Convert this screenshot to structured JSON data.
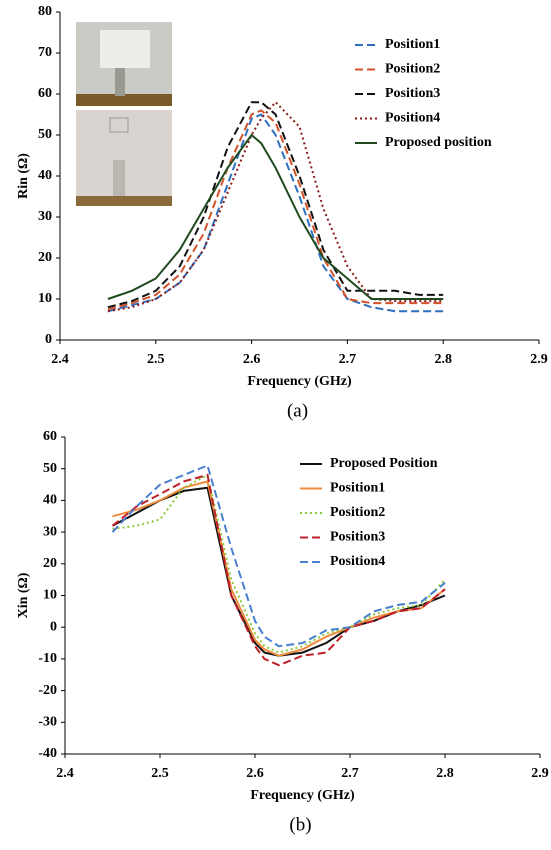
{
  "chart_data": [
    {
      "type": "line",
      "xlabel": "Frequency (GHz)",
      "ylabel": "Rin (Ω)",
      "caption": "(a)",
      "x": [
        2.45,
        2.475,
        2.5,
        2.525,
        2.55,
        2.575,
        2.6,
        2.61,
        2.625,
        2.65,
        2.675,
        2.7,
        2.725,
        2.75,
        2.775,
        2.8
      ],
      "xlim": [
        2.4,
        2.9
      ],
      "xticks": [
        2.4,
        2.5,
        2.6,
        2.7,
        2.8,
        2.9
      ],
      "ylim": [
        0,
        80
      ],
      "yticks": [
        0,
        10,
        20,
        30,
        40,
        50,
        60,
        70,
        80
      ],
      "legend": "upper right",
      "grid": false,
      "series": [
        {
          "name": "Position1",
          "color": "#2e6fc0",
          "style": "dashed",
          "values": [
            7,
            8.5,
            10,
            14,
            22,
            38,
            54,
            55,
            50,
            35,
            18,
            10,
            8,
            7,
            7,
            7
          ]
        },
        {
          "name": "Position2",
          "color": "#d2522a",
          "style": "dashed",
          "values": [
            7.5,
            9,
            11,
            16,
            26,
            42,
            55,
            56,
            53,
            38,
            20,
            10,
            9,
            9,
            9,
            9
          ]
        },
        {
          "name": "Position3",
          "color": "#111111",
          "style": "dashed",
          "values": [
            8,
            9.5,
            12,
            18,
            30,
            47,
            58,
            58,
            55,
            40,
            22,
            12,
            12,
            12,
            11,
            11
          ]
        },
        {
          "name": "Position4",
          "color": "#8b1a1a",
          "style": "dotted",
          "values": [
            7,
            8,
            10,
            14,
            22,
            36,
            50,
            54,
            58,
            52,
            32,
            18,
            10,
            9.5,
            9.5,
            9.5
          ]
        },
        {
          "name": "Proposed position",
          "color": "#1f4a1f",
          "style": "solid",
          "values": [
            10,
            12,
            15,
            22,
            32,
            42,
            50,
            48,
            42,
            30,
            20,
            15,
            10,
            10,
            10,
            10
          ]
        }
      ]
    },
    {
      "type": "line",
      "xlabel": "Frequency (GHz)",
      "ylabel": "Xin (Ω)",
      "caption": "(b)",
      "x": [
        2.45,
        2.475,
        2.5,
        2.525,
        2.55,
        2.575,
        2.6,
        2.61,
        2.625,
        2.65,
        2.675,
        2.7,
        2.725,
        2.75,
        2.775,
        2.8
      ],
      "xlim": [
        2.4,
        2.9
      ],
      "xticks": [
        2.4,
        2.5,
        2.6,
        2.7,
        2.8,
        2.9
      ],
      "ylim": [
        -40,
        60
      ],
      "yticks": [
        -40,
        -30,
        -20,
        -10,
        0,
        10,
        20,
        30,
        40,
        50,
        60
      ],
      "legend": "upper right",
      "grid": false,
      "series": [
        {
          "name": "Proposed Position",
          "color": "#111111",
          "style": "solid",
          "values": [
            32,
            36,
            40,
            43,
            44,
            10,
            -5,
            -8,
            -9,
            -8,
            -5,
            0,
            2,
            5,
            7,
            10
          ]
        },
        {
          "name": "Position1",
          "color": "#f08a3c",
          "style": "solid",
          "values": [
            35,
            37,
            40,
            44,
            46,
            12,
            -4,
            -7,
            -9,
            -7,
            -3,
            0,
            3,
            5,
            6,
            12
          ]
        },
        {
          "name": "Position2",
          "color": "#8cc83c",
          "style": "dotted",
          "values": [
            31,
            32,
            34,
            44,
            48,
            15,
            -2,
            -6,
            -8,
            -6,
            -2,
            0,
            4,
            6,
            7,
            15
          ]
        },
        {
          "name": "Position3",
          "color": "#c0202a",
          "style": "dashed",
          "values": [
            32,
            38,
            42,
            46,
            48,
            10,
            -6,
            -10,
            -12,
            -9,
            -8,
            0,
            2,
            5,
            6,
            12
          ]
        },
        {
          "name": "Position4",
          "color": "#4a7fd0",
          "style": "dashed",
          "values": [
            30,
            38,
            45,
            48,
            51,
            25,
            2,
            -3,
            -6,
            -5,
            -1,
            0,
            5,
            7,
            8,
            14
          ]
        }
      ]
    }
  ]
}
